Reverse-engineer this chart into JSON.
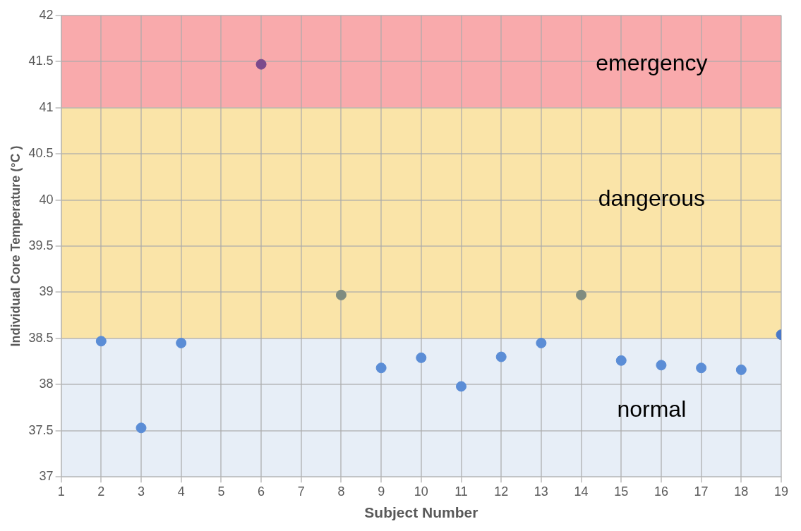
{
  "chart_data": {
    "type": "scatter",
    "xlabel": "Subject Number",
    "ylabel": "Individual Core Temperature (°C )",
    "x": [
      2,
      3,
      4,
      6,
      8,
      9,
      10,
      11,
      12,
      13,
      14,
      15,
      16,
      17,
      18,
      19
    ],
    "series": [
      {
        "colors": [
          "#5b8dd6",
          "#5b8dd6",
          "#5b8dd6",
          "#7b4a8c",
          "#7f8c80",
          "#5b8dd6",
          "#5b8dd6",
          "#5b8dd6",
          "#5b8dd6",
          "#5b8dd6",
          "#7f8c80",
          "#5b8dd6",
          "#5b8dd6",
          "#5b8dd6",
          "#5b8dd6",
          "#4a78c8"
        ],
        "values": [
          38.47,
          37.53,
          38.45,
          41.47,
          38.97,
          38.18,
          38.29,
          37.98,
          38.3,
          38.45,
          38.97,
          38.26,
          38.21,
          38.18,
          38.16,
          38.54
        ]
      }
    ],
    "xlim": [
      1,
      19
    ],
    "xticks": [
      1,
      2,
      3,
      4,
      5,
      6,
      7,
      8,
      9,
      10,
      11,
      12,
      13,
      14,
      15,
      16,
      17,
      18,
      19
    ],
    "ylim": [
      37,
      42
    ],
    "yticks": [
      37,
      37.5,
      38,
      38.5,
      39,
      39.5,
      40,
      40.5,
      41,
      41.5,
      42
    ],
    "bands": [
      {
        "axis": "y",
        "from": 41,
        "to": 42,
        "label": "emergency",
        "color": "#f9aaac"
      },
      {
        "axis": "y",
        "from": 38.5,
        "to": 41,
        "label": "dangerous",
        "color": "#fae4a8"
      },
      {
        "axis": "y",
        "from": 37,
        "to": 38.5,
        "label": "normal",
        "color": "#e7eef7"
      }
    ],
    "grid": true,
    "legend": false,
    "marker": "circle"
  }
}
